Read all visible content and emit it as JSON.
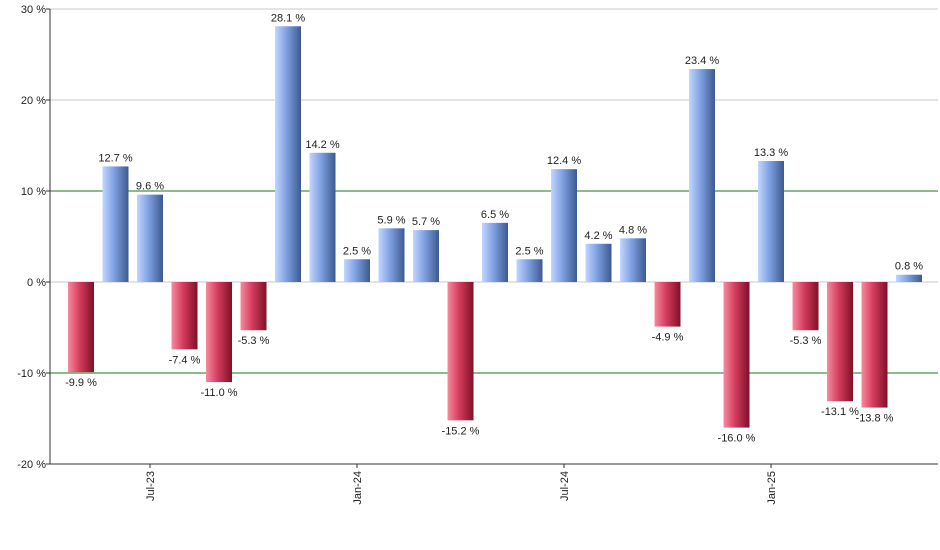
{
  "chart_data": {
    "type": "bar",
    "title": "",
    "xlabel": "",
    "ylabel": "",
    "ylim": [
      -20,
      30
    ],
    "yticks": [
      -20,
      -10,
      0,
      10,
      20,
      30
    ],
    "ytick_labels": [
      "-20 %",
      "-10 %",
      "0 %",
      "10 %",
      "20 %",
      "30 %"
    ],
    "reference_lines": [
      -10,
      10
    ],
    "value_suffix": " %",
    "x_tick_labels": [
      {
        "label": "Jul-23",
        "index": 2
      },
      {
        "label": "Jan-24",
        "index": 8
      },
      {
        "label": "Jul-24",
        "index": 14
      },
      {
        "label": "Jan-25",
        "index": 20
      }
    ],
    "values": [
      -9.9,
      12.7,
      9.6,
      -7.4,
      -11.0,
      -5.3,
      28.1,
      14.2,
      2.5,
      5.9,
      5.7,
      -15.2,
      6.5,
      2.5,
      12.4,
      4.2,
      4.8,
      -4.9,
      23.4,
      -16.0,
      13.3,
      -5.3,
      -13.1,
      -13.8,
      0.8
    ],
    "labels": [
      "-9.9 %",
      "12.7 %",
      "9.6 %",
      "-7.4 %",
      "-11.0 %",
      "-5.3 %",
      "28.1 %",
      "14.2 %",
      "2.5 %",
      "5.9 %",
      "5.7 %",
      "-15.2 %",
      "6.5 %",
      "2.5 %",
      "12.4 %",
      "4.2 %",
      "4.8 %",
      "-4.9 %",
      "23.4 %",
      "-16.0 %",
      "13.3 %",
      "-5.3 %",
      "-13.1 %",
      "-13.8 %",
      "0.8 %"
    ],
    "colors": {
      "positive_light": "#b4cdfa",
      "positive_dark": "#3f5f97",
      "negative_light": "#f0758c",
      "negative_dark": "#8c1630",
      "reference_line": "#1a7a1a",
      "grid": "#c8c8c8",
      "axis": "#333333"
    }
  }
}
